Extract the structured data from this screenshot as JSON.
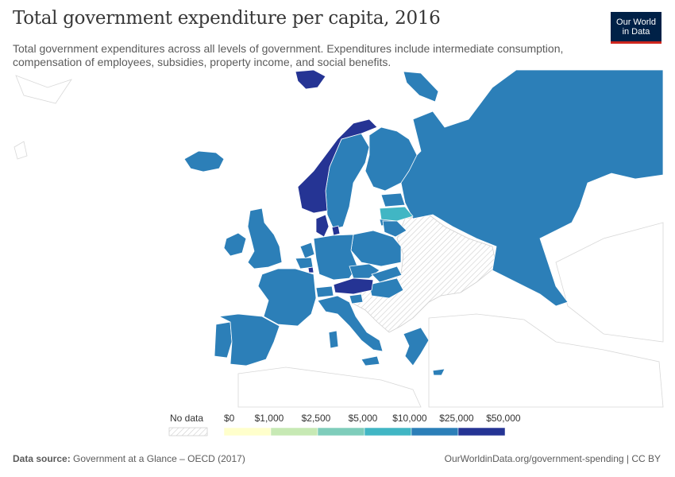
{
  "header": {
    "title": "Total government expenditure per capita, 2016",
    "subtitle": "Total government expenditures across all levels of government. Expenditures include intermediate consumption, compensation of employees, subsidies, property income, and social benefits."
  },
  "logo": {
    "line1": "Our World",
    "line2": "in Data"
  },
  "legend": {
    "no_data_label": "No data",
    "bins": [
      {
        "label": "$0",
        "color": "#ffffcc"
      },
      {
        "label": "$1,000",
        "color": "#c7e9b4"
      },
      {
        "label": "$2,500",
        "color": "#7fcdbb"
      },
      {
        "label": "$5,000",
        "color": "#41b6c4"
      },
      {
        "label": "$10,000",
        "color": "#2c7fb8"
      },
      {
        "label": "$25,000",
        "color": "#253494"
      },
      {
        "label": "$50,000",
        "color": ""
      }
    ]
  },
  "footer": {
    "source_label": "Data source:",
    "source_value": "Government at a Glance – OECD (2017)",
    "url": "OurWorldinData.org/government-spending | CC BY"
  },
  "colors": {
    "tier_10k_25k": "#2c7fb8",
    "tier_25k_50k": "#253494",
    "tier_5k_10k": "#41b6c4",
    "no_data": "#f0f0f0",
    "land_outline": "#cccccc"
  }
}
